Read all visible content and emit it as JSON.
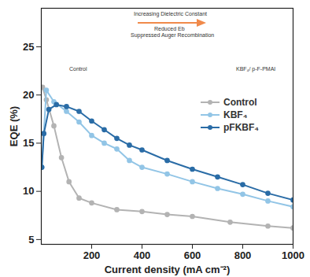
{
  "chart_data": {
    "type": "line",
    "xlabel": "Current density (mA cm⁻²)",
    "ylabel": "EQE (%)",
    "xlim": [
      0,
      1000
    ],
    "xticks": [
      200,
      400,
      600,
      800,
      1000
    ],
    "ylim": [
      4.5,
      29
    ],
    "yticks": [
      5,
      10,
      15,
      20,
      25
    ],
    "grid": false,
    "legend": "right",
    "annotations": [
      "Increasing Dielectric Constant",
      "Reduced Eb",
      "Suppressed Auger Recombination",
      "Control",
      "KBF₄/ p-F-PMAI"
    ],
    "series": [
      {
        "name": "Control",
        "color": "#b3b3b3",
        "marker": "circle",
        "line_style": "solid",
        "x": [
          5,
          20,
          50,
          80,
          110,
          150,
          200,
          300,
          400,
          500,
          600,
          750,
          900,
          1000
        ],
        "values": [
          20.8,
          19.5,
          16.8,
          13.5,
          11,
          9.3,
          8.8,
          8.1,
          7.9,
          7.6,
          7.4,
          6.8,
          6.4,
          6.2
        ]
      },
      {
        "name": "KBF₄",
        "color": "#92c5e6",
        "marker": "circle",
        "line_style": "solid",
        "x": [
          2,
          20,
          50,
          100,
          150,
          200,
          250,
          300,
          350,
          400,
          500,
          600,
          700,
          800,
          900,
          1000
        ],
        "values": [
          12.5,
          20.5,
          19.3,
          18.3,
          17.2,
          15.8,
          15,
          14.4,
          13.2,
          12.5,
          11.8,
          11,
          10.3,
          9.7,
          9,
          8.4
        ]
      },
      {
        "name": "pFKBF₄",
        "color": "#2a6ca6",
        "marker": "circle",
        "line_style": "solid",
        "x": [
          2,
          10,
          30,
          60,
          100,
          150,
          200,
          250,
          300,
          350,
          400,
          500,
          600,
          700,
          800,
          900,
          1000
        ],
        "values": [
          12.5,
          16,
          18.5,
          19,
          18.8,
          18.3,
          17.3,
          16.4,
          15.5,
          14.8,
          14.3,
          13.2,
          12.3,
          11.5,
          10.7,
          9.8,
          9.1
        ]
      }
    ]
  }
}
